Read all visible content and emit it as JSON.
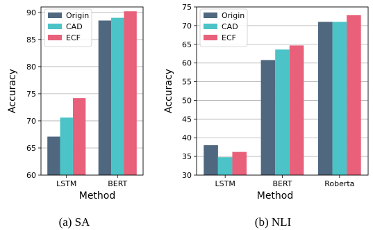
{
  "colors": {
    "Origin": "#4f6880",
    "CAD": "#4bc3c7",
    "ECF": "#e8607a",
    "grid": "#b0b0b0"
  },
  "chart_data": [
    {
      "type": "bar",
      "caption": "(a)  SA",
      "xlabel": "Method",
      "ylabel": "Accuracy",
      "ylim": [
        60,
        91
      ],
      "yticks": [
        60,
        65,
        70,
        75,
        80,
        85,
        90
      ],
      "grid": "horizontal",
      "legend": "top-left",
      "categories": [
        "LSTM",
        "BERT"
      ],
      "series": [
        {
          "name": "Origin",
          "values": [
            67.1,
            88.5
          ]
        },
        {
          "name": "CAD",
          "values": [
            70.6,
            89.0
          ]
        },
        {
          "name": "ECF",
          "values": [
            74.2,
            90.2
          ]
        }
      ]
    },
    {
      "type": "bar",
      "caption": "(b)  NLI",
      "xlabel": "Method",
      "ylabel": "Accuracy",
      "ylim": [
        30,
        75
      ],
      "yticks": [
        30,
        35,
        40,
        45,
        50,
        55,
        60,
        65,
        70,
        75
      ],
      "grid": "horizontal",
      "legend": "top-left",
      "categories": [
        "LSTM",
        "BERT",
        "Roberta"
      ],
      "series": [
        {
          "name": "Origin",
          "values": [
            38.0,
            60.8,
            71.0
          ]
        },
        {
          "name": "CAD",
          "values": [
            34.8,
            63.6,
            71.0
          ]
        },
        {
          "name": "ECF",
          "values": [
            36.2,
            64.7,
            72.8
          ]
        }
      ]
    }
  ]
}
